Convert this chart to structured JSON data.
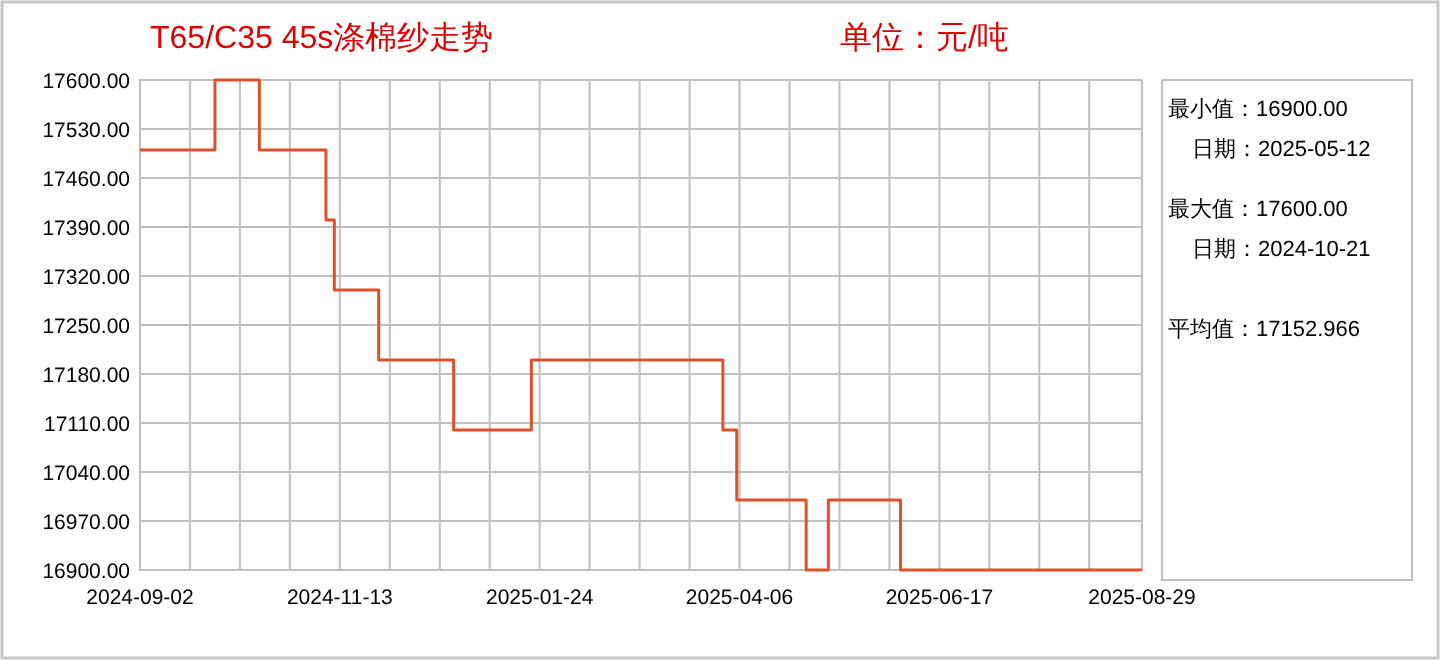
{
  "chart_data": {
    "type": "step",
    "title": "T65/C35 45s涤棉纱走势",
    "subtitle": "单位：元/吨",
    "x": [
      "2024-09-02",
      "2024-09-29",
      "2024-10-15",
      "2024-11-08",
      "2024-11-11",
      "2024-11-27",
      "2024-12-24",
      "2025-01-21",
      "2025-03-31",
      "2025-04-05",
      "2025-04-30",
      "2025-05-08",
      "2025-06-03",
      "2025-08-29"
    ],
    "values": [
      17500,
      17600,
      17500,
      17400,
      17300,
      17200,
      17100,
      17200,
      17100,
      17000,
      16900,
      17000,
      16900,
      16900
    ],
    "color": "#e0502a",
    "xlim": [
      "2024-09-02",
      "2025-08-29"
    ],
    "xticks": [
      {
        "value": "2024-09-02",
        "label": "2024-09-02"
      },
      {
        "value": "2024-09-20",
        "label": null
      },
      {
        "value": "2024-10-08",
        "label": null
      },
      {
        "value": "2024-10-26",
        "label": null
      },
      {
        "value": "2024-11-13",
        "label": "2024-11-13"
      },
      {
        "value": "2024-12-01",
        "label": null
      },
      {
        "value": "2024-12-19",
        "label": null
      },
      {
        "value": "2025-01-06",
        "label": null
      },
      {
        "value": "2025-01-24",
        "label": "2025-01-24"
      },
      {
        "value": "2025-02-11",
        "label": null
      },
      {
        "value": "2025-03-01",
        "label": null
      },
      {
        "value": "2025-03-19",
        "label": null
      },
      {
        "value": "2025-04-06",
        "label": "2025-04-06"
      },
      {
        "value": "2025-04-24",
        "label": null
      },
      {
        "value": "2025-05-12",
        "label": null
      },
      {
        "value": "2025-05-30",
        "label": null
      },
      {
        "value": "2025-06-17",
        "label": "2025-06-17"
      },
      {
        "value": "2025-07-05",
        "label": null
      },
      {
        "value": "2025-07-23",
        "label": null
      },
      {
        "value": "2025-08-10",
        "label": null
      },
      {
        "value": "2025-08-29",
        "label": "2025-08-29"
      }
    ],
    "ylim": [
      16900,
      17600
    ],
    "yticks": [
      {
        "value": 16900,
        "label": "16900.00"
      },
      {
        "value": 16970,
        "label": "16970.00"
      },
      {
        "value": 17040,
        "label": "17040.00"
      },
      {
        "value": 17110,
        "label": "17110.00"
      },
      {
        "value": 17180,
        "label": "17180.00"
      },
      {
        "value": 17250,
        "label": "17250.00"
      },
      {
        "value": 17320,
        "label": "17320.00"
      },
      {
        "value": 17390,
        "label": "17390.00"
      },
      {
        "value": 17460,
        "label": "17460.00"
      },
      {
        "value": 17530,
        "label": "17530.00"
      },
      {
        "value": 17600,
        "label": "17600.00"
      }
    ],
    "grid": true,
    "annotations": [
      "最小值：16900.00",
      "日期：2025-05-12",
      "最大值：17600.00",
      "日期：2024-10-21",
      "平均值：17152.966"
    ]
  }
}
